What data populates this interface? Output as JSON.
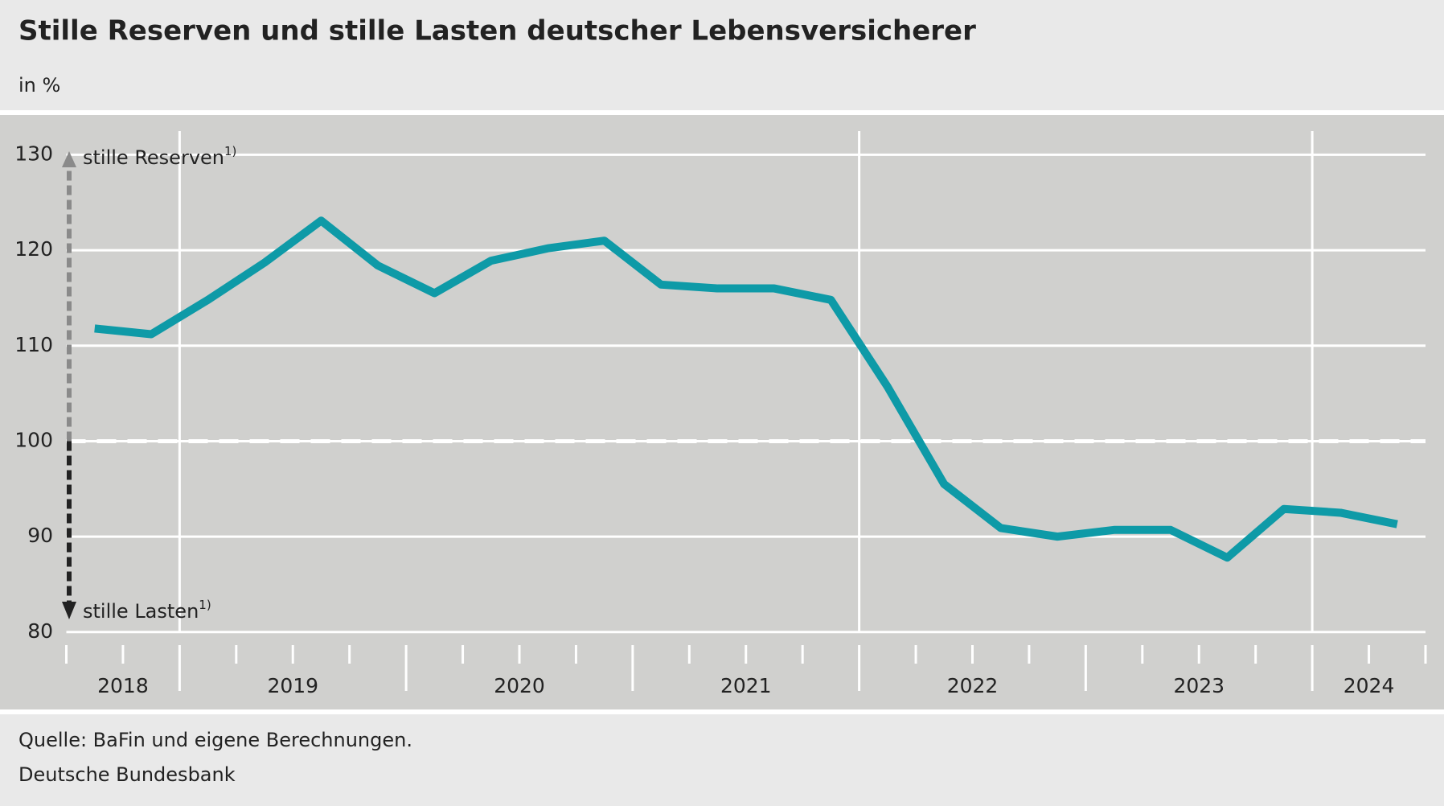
{
  "chart_data": {
    "type": "line",
    "title": "Stille Reserven und stille Lasten deutscher Lebensversicherer",
    "subtitle": "in %",
    "source": "Quelle: BaFin und eigene Berechnungen.",
    "publisher": "Deutsche Bundesbank",
    "annotations": [
      {
        "text": "stille Reserven",
        "note": "1)",
        "color": "#8a8a8a"
      },
      {
        "text": "stille Lasten",
        "note": "1)",
        "color": "#222222"
      }
    ],
    "x": [
      2018.625,
      2018.875,
      2019.125,
      2019.375,
      2019.625,
      2019.875,
      2020.125,
      2020.375,
      2020.625,
      2020.875,
      2021.125,
      2021.375,
      2021.625,
      2021.875,
      2022.125,
      2022.375,
      2022.625,
      2022.875,
      2023.125,
      2023.375,
      2023.625,
      2023.875,
      2024.125,
      2024.375
    ],
    "series": [
      {
        "color": "#0e9aa7",
        "values": [
          111.8,
          111.2,
          114.8,
          118.7,
          123.1,
          118.4,
          115.5,
          118.9,
          120.2,
          121.0,
          116.4,
          116.0,
          116.0,
          114.8,
          105.7,
          95.5,
          90.9,
          90.0,
          90.7,
          90.7,
          87.8,
          92.9,
          92.5,
          91.3
        ]
      }
    ],
    "xlim": [
      2018.5,
      2024.5
    ],
    "xticks": [
      {
        "value": 2018.75,
        "label": "2018"
      },
      {
        "value": 2019.5,
        "label": "2019"
      },
      {
        "value": 2020.5,
        "label": "2020"
      },
      {
        "value": 2021.5,
        "label": "2021"
      },
      {
        "value": 2022.5,
        "label": "2022"
      },
      {
        "value": 2023.5,
        "label": "2023"
      },
      {
        "value": 2024.25,
        "label": "2024"
      }
    ],
    "xgrid": [
      2019,
      2022,
      2024
    ],
    "ylim": [
      80,
      130
    ],
    "yticks": [
      80,
      90,
      100,
      110,
      120,
      130
    ],
    "reference_line": 100,
    "grid": true
  }
}
